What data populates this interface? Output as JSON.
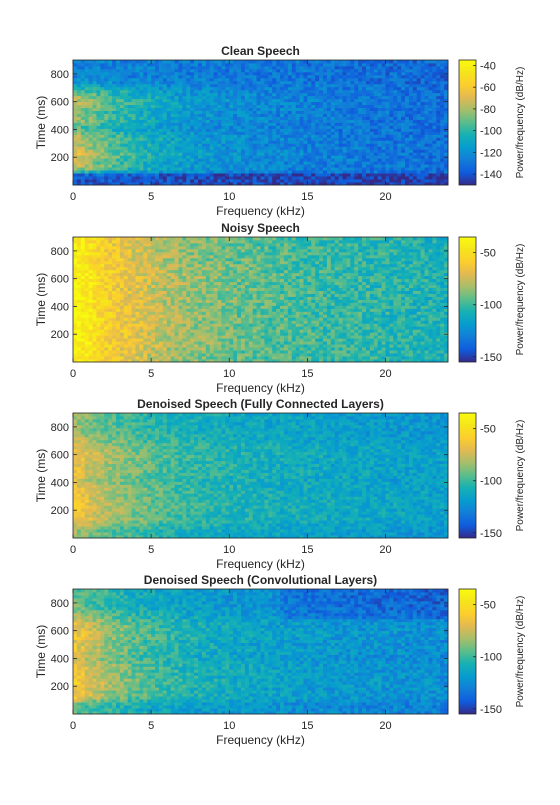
{
  "chart_data": [
    {
      "type": "heatmap",
      "title": "Clean Speech",
      "xlabel": "Frequency (kHz)",
      "ylabel": "Time (ms)",
      "xlim": [
        0,
        24
      ],
      "ylim": [
        0,
        900
      ],
      "x_ticks": [
        "0",
        "5",
        "10",
        "15",
        "20"
      ],
      "y_ticks": [
        "200",
        "400",
        "600",
        "800"
      ],
      "colorbar": {
        "label": "Power/frequency (dB/Hz)",
        "range": [
          -150,
          -35
        ],
        "ticks": [
          "-40",
          "-60",
          "-80",
          "-100",
          "-120",
          "-140"
        ]
      },
      "colormap": "parula",
      "grid": false
    },
    {
      "type": "heatmap",
      "title": "Noisy Speech",
      "xlabel": "Frequency (kHz)",
      "ylabel": "Time (ms)",
      "xlim": [
        0,
        24
      ],
      "ylim": [
        0,
        900
      ],
      "x_ticks": [
        "0",
        "5",
        "10",
        "15",
        "20"
      ],
      "y_ticks": [
        "200",
        "400",
        "600",
        "800"
      ],
      "colorbar": {
        "label": "Power/frequency (dB/Hz)",
        "range": [
          -155,
          -35
        ],
        "ticks": [
          "-50",
          "-100",
          "-150"
        ]
      },
      "colormap": "parula",
      "grid": false
    },
    {
      "type": "heatmap",
      "title": "Denoised Speech (Fully Connected Layers)",
      "xlabel": "Frequency (kHz)",
      "ylabel": "Time (ms)",
      "xlim": [
        0,
        24
      ],
      "ylim": [
        0,
        900
      ],
      "x_ticks": [
        "0",
        "5",
        "10",
        "15",
        "20"
      ],
      "y_ticks": [
        "200",
        "400",
        "600",
        "800"
      ],
      "colorbar": {
        "label": "Power/frequency (dB/Hz)",
        "range": [
          -155,
          -35
        ],
        "ticks": [
          "-50",
          "-100",
          "-150"
        ]
      },
      "colormap": "parula",
      "grid": false
    },
    {
      "type": "heatmap",
      "title": "Denoised Speech (Convolutional Layers)",
      "xlabel": "Frequency (kHz)",
      "ylabel": "Time (ms)",
      "xlim": [
        0,
        24
      ],
      "ylim": [
        0,
        900
      ],
      "x_ticks": [
        "0",
        "5",
        "10",
        "15",
        "20"
      ],
      "y_ticks": [
        "200",
        "400",
        "600",
        "800"
      ],
      "colorbar": {
        "label": "Power/frequency (dB/Hz)",
        "range": [
          -155,
          -35
        ],
        "ticks": [
          "-50",
          "-100",
          "-150"
        ]
      },
      "colormap": "parula",
      "grid": false
    }
  ]
}
